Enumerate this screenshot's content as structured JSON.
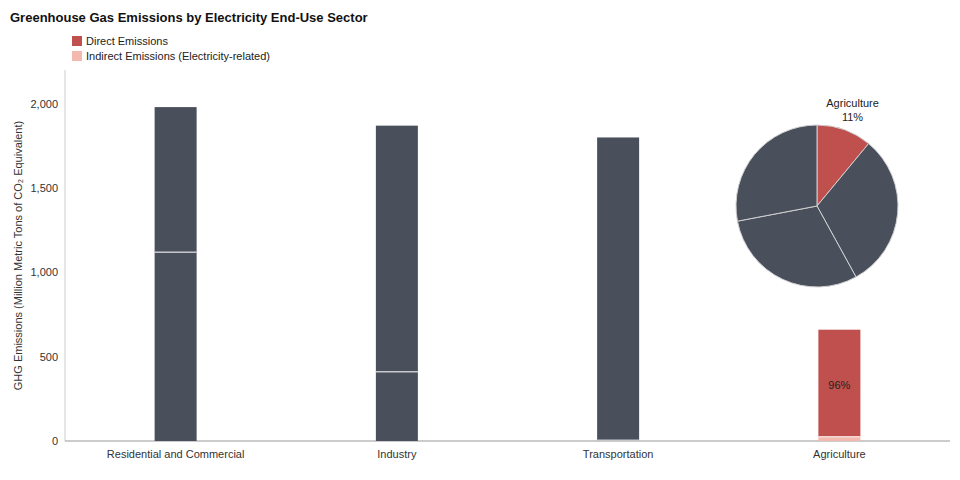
{
  "chart_data": [
    {
      "type": "bar",
      "title": "Greenhouse Gas Emissions by Electricity End-Use Sector",
      "y_label": "GHG Emissions (Million Metric Tons of CO₂ Equivalent)",
      "categories": [
        "Residential and Commercial",
        "Industry",
        "Transportation",
        "Agriculture"
      ],
      "series": [
        {
          "name": "Direct Emissions",
          "color": "#c0504d",
          "colors": [
            "#4a4f5c",
            "#4a4f5c",
            "#4a4f5c",
            "#c0504d"
          ],
          "values": [
            860,
            1460,
            1795,
            635
          ]
        },
        {
          "name": "Indirect Emissions (Electricity-related)",
          "color": "#f4b9ae",
          "colors": [
            "#4a4f5c",
            "#4a4f5c",
            "#4a4f5c",
            "#f4b9ae"
          ],
          "values": [
            1120,
            410,
            5,
            25
          ]
        }
      ],
      "stacked": true,
      "legend": "upper left",
      "grid": false,
      "ylim": [
        0,
        2200
      ],
      "yticks": [
        0,
        500,
        {
          "value": 1000,
          "label": "1,000"
        },
        {
          "value": 1500,
          "label": "1,500"
        },
        {
          "value": 2000,
          "label": "2,000"
        }
      ],
      "annotations": [
        {
          "text": "96%",
          "category": "Agriculture"
        }
      ]
    },
    {
      "type": "pie",
      "categories": [
        "Agriculture",
        null,
        null,
        null
      ],
      "values": [
        11,
        31,
        30,
        28
      ],
      "value_labels": [
        "11%",
        null,
        null,
        null
      ],
      "colors": [
        "#c0504d",
        "#4a4f5c",
        "#4a4f5c",
        "#4a4f5c"
      ]
    }
  ]
}
